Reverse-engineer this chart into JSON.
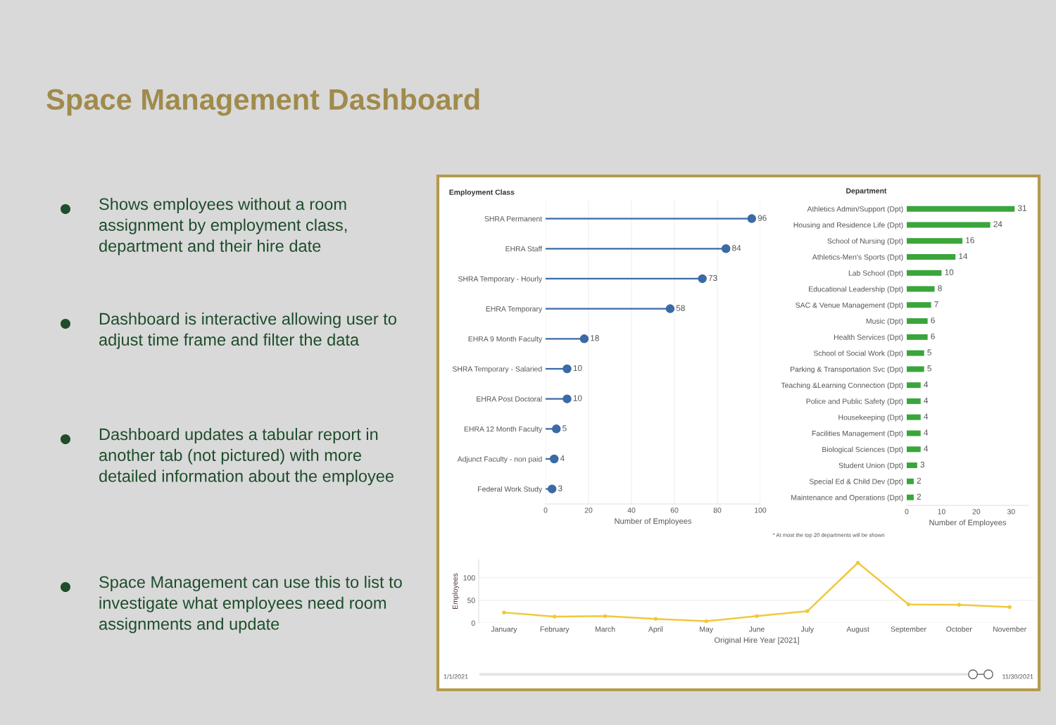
{
  "chart_data": [
    {
      "type": "other",
      "title": "Space Management Dashboard",
      "annotations": [
        "Shows employees without a room assignment by employment class, department and their hire date",
        "Dashboard is interactive allowing user to adjust time frame and filter the data",
        "Dashboard updates a tabular report in another tab (not pictured) with more detailed information about the employee",
        "Space Management can use this to list to investigate what employees need room assignments and update"
      ]
    },
    {
      "type": "lollipop",
      "orientation": "horizontal",
      "title": "Employment Class",
      "xlabel": "Number of Employees",
      "categories": [
        "SHRA Permanent",
        "EHRA Staff",
        "SHRA Temporary - Hourly",
        "EHRA Temporary",
        "EHRA 9 Month Faculty",
        "SHRA Temporary - Salaried",
        "EHRA Post Doctoral",
        "EHRA 12 Month Faculty",
        "Adjunct Faculty - non paid",
        "Federal Work Study"
      ],
      "values": [
        96,
        84,
        73,
        58,
        18,
        10,
        10,
        5,
        4,
        3
      ],
      "color": "#3b6aa6",
      "xlim": [
        0,
        100
      ],
      "xticks": [
        0,
        20,
        40,
        60,
        80,
        100
      ],
      "grid": "x",
      "data_labels": true,
      "marker": "circle"
    },
    {
      "type": "bar",
      "orientation": "horizontal",
      "title": "Department",
      "xlabel": "Number of Employees",
      "categories": [
        "Athletics Admin/Support (Dpt)",
        "Housing and Residence Life (Dpt)",
        "School of Nursing (Dpt)",
        "Athletics-Men's Sports (Dpt)",
        "Lab School (Dpt)",
        "Educational Leadership (Dpt)",
        "SAC & Venue Management (Dpt)",
        "Music (Dpt)",
        "Health Services (Dpt)",
        "School of Social Work (Dpt)",
        "Parking & Transportation Svc (Dpt)",
        "Teaching &Learning Connection (Dpt)",
        "Police and Public Safety (Dpt)",
        "Housekeeping (Dpt)",
        "Facilities Management (Dpt)",
        "Biological Sciences (Dpt)",
        "Student Union (Dpt)",
        "Special Ed & Child Dev (Dpt)",
        "Maintenance and Operations (Dpt)"
      ],
      "values": [
        31,
        24,
        16,
        14,
        10,
        8,
        7,
        6,
        6,
        5,
        5,
        4,
        4,
        4,
        4,
        4,
        3,
        2,
        2
      ],
      "color": "#3aa53a",
      "xlim": [
        0,
        35
      ],
      "xticks": [
        0,
        10,
        20,
        30
      ],
      "data_labels": true,
      "annotations": [
        "* At most the top 20 departments will be shown"
      ]
    },
    {
      "type": "line",
      "xlabel": "Original Hire Year [2021]",
      "ylabel": "Employees",
      "categories": [
        "January",
        "February",
        "March",
        "April",
        "May",
        "June",
        "July",
        "August",
        "September",
        "October",
        "November"
      ],
      "values": [
        23,
        14,
        15,
        9,
        4,
        15,
        26,
        133,
        41,
        40,
        35
      ],
      "color": "#f0c93c",
      "marker": "circle",
      "ylim": [
        0,
        140
      ],
      "yticks": [
        0,
        50,
        100
      ],
      "grid": "y",
      "annotations": [
        "1/1/2021",
        "11/30/2021"
      ]
    }
  ]
}
